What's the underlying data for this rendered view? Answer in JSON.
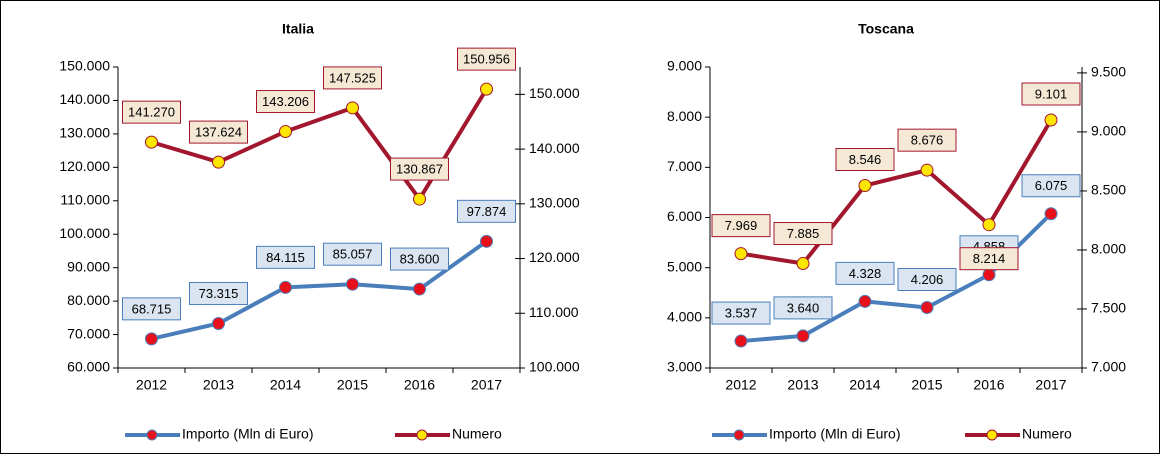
{
  "chart_data": [
    {
      "type": "line",
      "title": "Italia",
      "categories": [
        "2012",
        "2013",
        "2014",
        "2015",
        "2016",
        "2017"
      ],
      "ylim": [
        60000,
        150000
      ],
      "yticks": [
        {
          "value": 60000,
          "label": "60.000"
        },
        {
          "value": 70000,
          "label": "70.000"
        },
        {
          "value": 80000,
          "label": "80.000"
        },
        {
          "value": 90000,
          "label": "90.000"
        },
        {
          "value": 100000,
          "label": "100.000"
        },
        {
          "value": 110000,
          "label": "110.000"
        },
        {
          "value": 120000,
          "label": "120.000"
        },
        {
          "value": 130000,
          "label": "130.000"
        },
        {
          "value": 140000,
          "label": "140.000"
        },
        {
          "value": 150000,
          "label": "150.000"
        }
      ],
      "y2lim": [
        100000,
        155000
      ],
      "y2ticks": [
        {
          "value": 100000,
          "label": "100.000"
        },
        {
          "value": 110000,
          "label": "110.000"
        },
        {
          "value": 120000,
          "label": "120.000"
        },
        {
          "value": 130000,
          "label": "130.000"
        },
        {
          "value": 140000,
          "label": "140.000"
        },
        {
          "value": 150000,
          "label": "150.000"
        }
      ],
      "series": [
        {
          "name": "Importo (Mln di Euro)",
          "color": "#4a7ebb",
          "marker_color": "#e8101a",
          "values": [
            68715,
            73315,
            84115,
            85057,
            83600,
            97874
          ],
          "value_labels": [
            "68.715",
            "73.315",
            "84.115",
            "85.057",
            "83.600",
            "97.874"
          ]
        },
        {
          "name": "Numero",
          "color": "#a2172d",
          "marker_color": "#ffe600",
          "axis": "y2",
          "values": [
            141270,
            137624,
            143206,
            147525,
            130867,
            150956
          ],
          "value_labels": [
            "141.270",
            "137.624",
            "143.206",
            "147.525",
            "130.867",
            "150.956"
          ]
        }
      ]
    },
    {
      "type": "line",
      "title": "Toscana",
      "categories": [
        "2012",
        "2013",
        "2014",
        "2015",
        "2016",
        "2017"
      ],
      "ylim": [
        3000,
        9000
      ],
      "yticks": [
        {
          "value": 3000,
          "label": "3.000"
        },
        {
          "value": 4000,
          "label": "4.000"
        },
        {
          "value": 5000,
          "label": "5.000"
        },
        {
          "value": 6000,
          "label": "6.000"
        },
        {
          "value": 7000,
          "label": "7.000"
        },
        {
          "value": 8000,
          "label": "8.000"
        },
        {
          "value": 9000,
          "label": "9.000"
        }
      ],
      "y2lim": [
        7000,
        9550
      ],
      "y2ticks": [
        {
          "value": 7000,
          "label": "7.000"
        },
        {
          "value": 7500,
          "label": "7.500"
        },
        {
          "value": 8000,
          "label": "8.000"
        },
        {
          "value": 8500,
          "label": "8.500"
        },
        {
          "value": 9000,
          "label": "9.000"
        },
        {
          "value": 9500,
          "label": "9.500"
        }
      ],
      "series": [
        {
          "name": "Importo (Mln di Euro)",
          "color": "#4a7ebb",
          "marker_color": "#e8101a",
          "values": [
            3537,
            3640,
            4328,
            4206,
            4858,
            6075
          ],
          "value_labels": [
            "3.537",
            "3.640",
            "4.328",
            "4.206",
            "4.858",
            "6.075"
          ]
        },
        {
          "name": "Numero",
          "color": "#a2172d",
          "marker_color": "#ffe600",
          "axis": "y2",
          "values": [
            7969,
            7885,
            8546,
            8676,
            8214,
            9101
          ],
          "value_labels": [
            "7.969",
            "7.885",
            "8.546",
            "8.676",
            "8.214",
            "9.101"
          ]
        }
      ]
    }
  ]
}
